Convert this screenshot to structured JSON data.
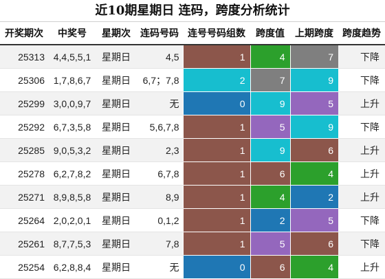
{
  "title": "近10期星期日 连码，跨度分析统计",
  "headers": [
    "开奖期次",
    "中奖号",
    "星期次",
    "连码号码",
    "连号号码组数",
    "跨度值",
    "上期跨度",
    "跨度趋势"
  ],
  "palette": {
    "0": "#1f77b4",
    "1": "#8c564b",
    "2": "#17becf",
    "4": "#2ca02c",
    "5": "#9467bd",
    "6": "#8c564b",
    "7": "#7f7f7f",
    "9": "#17becf"
  },
  "rows": [
    {
      "issue": "25313",
      "numbers": "4,4,5,5,1",
      "weekday": "星期日",
      "consec": "4,5",
      "groups": 1,
      "span": 4,
      "prev_span": 7,
      "trend": "下降"
    },
    {
      "issue": "25306",
      "numbers": "1,7,8,6,7",
      "weekday": "星期日",
      "consec": "6,7；7,8",
      "groups": 2,
      "span": 7,
      "prev_span": 9,
      "trend": "下降"
    },
    {
      "issue": "25299",
      "numbers": "3,0,0,9,7",
      "weekday": "星期日",
      "consec": "无",
      "groups": 0,
      "span": 9,
      "prev_span": 5,
      "trend": "上升"
    },
    {
      "issue": "25292",
      "numbers": "6,7,3,5,8",
      "weekday": "星期日",
      "consec": "5,6,7,8",
      "groups": 1,
      "span": 5,
      "prev_span": 9,
      "trend": "下降"
    },
    {
      "issue": "25285",
      "numbers": "9,0,5,3,2",
      "weekday": "星期日",
      "consec": "2,3",
      "groups": 1,
      "span": 9,
      "prev_span": 6,
      "trend": "上升"
    },
    {
      "issue": "25278",
      "numbers": "6,2,7,8,2",
      "weekday": "星期日",
      "consec": "6,7,8",
      "groups": 1,
      "span": 6,
      "prev_span": 4,
      "trend": "上升"
    },
    {
      "issue": "25271",
      "numbers": "8,9,8,5,8",
      "weekday": "星期日",
      "consec": "8,9",
      "groups": 1,
      "span": 4,
      "prev_span": 2,
      "trend": "上升"
    },
    {
      "issue": "25264",
      "numbers": "2,0,2,0,1",
      "weekday": "星期日",
      "consec": "0,1,2",
      "groups": 1,
      "span": 2,
      "prev_span": 5,
      "trend": "下降"
    },
    {
      "issue": "25261",
      "numbers": "8,7,7,5,3",
      "weekday": "星期日",
      "consec": "7,8",
      "groups": 1,
      "span": 5,
      "prev_span": 6,
      "trend": "下降"
    },
    {
      "issue": "25254",
      "numbers": "6,2,8,8,4",
      "weekday": "星期日",
      "consec": "无",
      "groups": 0,
      "span": 6,
      "prev_span": 4,
      "trend": "上升"
    }
  ],
  "row_colors": [
    [
      "#8c564b",
      "#2ca02c",
      "#7f7f7f"
    ],
    [
      "#17becf",
      "#7f7f7f",
      "#17becf"
    ],
    [
      "#1f77b4",
      "#17becf",
      "#9467bd"
    ],
    [
      "#8c564b",
      "#9467bd",
      "#17becf"
    ],
    [
      "#8c564b",
      "#17becf",
      "#8c564b"
    ],
    [
      "#8c564b",
      "#8c564b",
      "#2ca02c"
    ],
    [
      "#8c564b",
      "#2ca02c",
      "#1f77b4"
    ],
    [
      "#8c564b",
      "#1f77b4",
      "#9467bd"
    ],
    [
      "#8c564b",
      "#9467bd",
      "#8c564b"
    ],
    [
      "#1f77b4",
      "#8c564b",
      "#2ca02c"
    ]
  ]
}
